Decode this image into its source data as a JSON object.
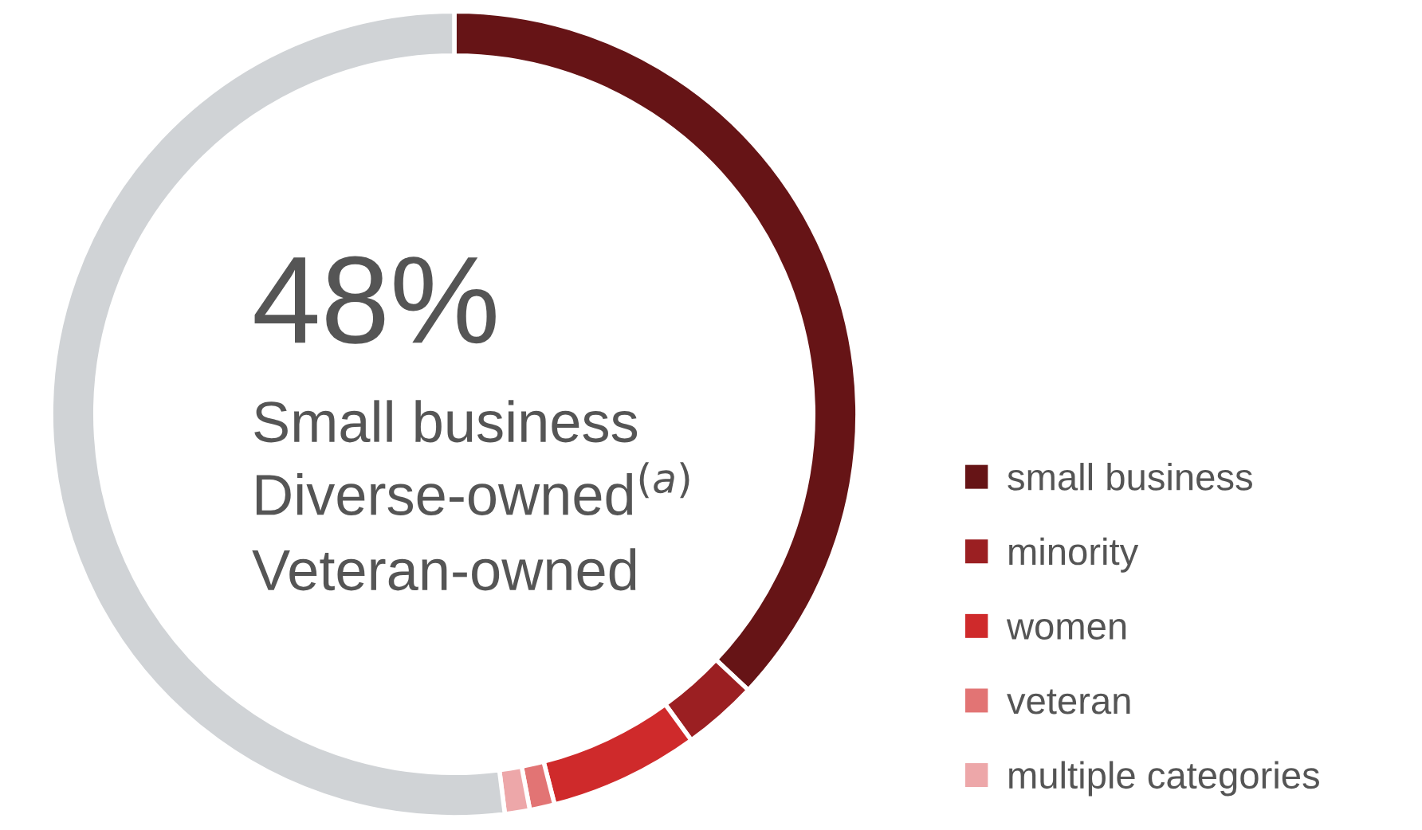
{
  "chart_data": {
    "type": "donut",
    "title": "48%",
    "annotations": [
      "Small business",
      "Diverse-owned$^{(a)}$",
      "Veteran-owned"
    ],
    "categories": [
      "small business",
      "minority",
      "women",
      "veteran",
      "multiple categories",
      null
    ],
    "values": [
      37,
      3,
      6,
      1,
      1,
      52
    ],
    "colors": [
      "#661416",
      "#9b1f22",
      "#cf2a2b",
      "#e27474",
      "#eda7a9",
      "#d0d3d6"
    ],
    "legend": "bottom right"
  }
}
